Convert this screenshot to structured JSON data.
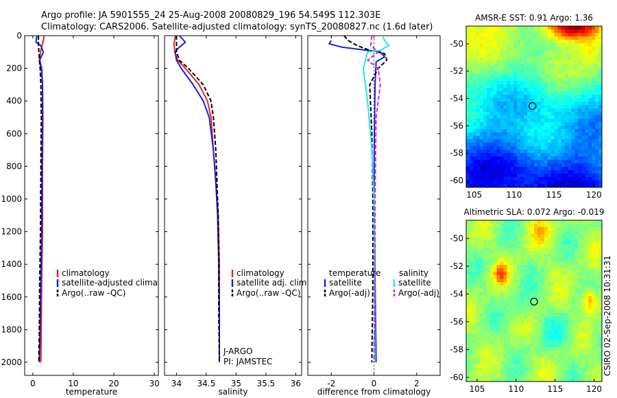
{
  "header": {
    "line1": "Argo profile: JA 5901555_24 25-Aug-2008 20080829_196 54.549S 112.303E",
    "line2": "Climatology: CARS2006. Satellite-adjusted climatology: synTS_20080827.nc (1.6d later)"
  },
  "colors": {
    "red": "#e8231c",
    "blue": "#1c1ce0",
    "black": "#000000",
    "cyan": "#20e8e8",
    "magenta": "#e020e0"
  },
  "chart_data": [
    {
      "type": "line",
      "id": "temperature",
      "xlabel": "temperature",
      "xlim": [
        -2,
        31
      ],
      "ylim": [
        0,
        2080
      ],
      "y_inverted": true,
      "xticks": [
        0,
        10,
        20,
        30
      ],
      "yticks": [
        0,
        200,
        400,
        600,
        800,
        1000,
        1200,
        1400,
        1600,
        1800,
        2000
      ],
      "legend": [
        "climatology",
        "satellite-adjusted climatology",
        "Argo(..raw -QC)"
      ],
      "series": [
        {
          "name": "climatology",
          "color": "red",
          "dash": false,
          "points": [
            [
              2.8,
              0
            ],
            [
              2.6,
              30
            ],
            [
              2.3,
              60
            ],
            [
              1.9,
              100
            ],
            [
              1.6,
              160
            ],
            [
              2.1,
              200
            ],
            [
              2.4,
              300
            ],
            [
              2.5,
              500
            ],
            [
              2.4,
              800
            ],
            [
              2.4,
              1200
            ],
            [
              2.2,
              1500
            ],
            [
              2.1,
              1800
            ],
            [
              2.0,
              2000
            ]
          ]
        },
        {
          "name": "satellite-adjusted climatology",
          "color": "blue",
          "dash": false,
          "points": [
            [
              1.0,
              0
            ],
            [
              0.8,
              40
            ],
            [
              2.0,
              60
            ],
            [
              2.6,
              100
            ],
            [
              1.7,
              150
            ],
            [
              2.2,
              200
            ],
            [
              2.4,
              300
            ],
            [
              2.4,
              500
            ],
            [
              2.3,
              800
            ],
            [
              2.2,
              1200
            ],
            [
              2.0,
              1500
            ],
            [
              1.8,
              1800
            ],
            [
              1.6,
              2000
            ]
          ]
        },
        {
          "name": "Argo(..raw -QC)",
          "color": "black",
          "dash": true,
          "points": [
            [
              1.4,
              0
            ],
            [
              1.4,
              50
            ],
            [
              1.5,
              100
            ],
            [
              1.8,
              200
            ],
            [
              2.0,
              300
            ],
            [
              2.1,
              500
            ],
            [
              2.0,
              800
            ],
            [
              1.9,
              1200
            ],
            [
              1.7,
              1500
            ],
            [
              1.6,
              1800
            ],
            [
              1.5,
              2000
            ]
          ]
        }
      ]
    },
    {
      "type": "line",
      "id": "salinity",
      "xlabel": "salinity",
      "xlim": [
        33.8,
        36.1
      ],
      "ylim": [
        0,
        2080
      ],
      "y_inverted": true,
      "xticks": [
        34,
        34.5,
        35,
        35.5,
        36
      ],
      "legend": [
        "climatology",
        "satellite adj. clim.",
        "Argo(..raw -QC)"
      ],
      "annotations": [
        "J-ARGO",
        "PI: JAMSTEC"
      ],
      "series": [
        {
          "name": "climatology",
          "color": "red",
          "dash": false,
          "points": [
            [
              33.98,
              0
            ],
            [
              33.96,
              50
            ],
            [
              33.97,
              100
            ],
            [
              34.02,
              150
            ],
            [
              34.15,
              200
            ],
            [
              34.38,
              300
            ],
            [
              34.52,
              400
            ],
            [
              34.58,
              500
            ],
            [
              34.62,
              700
            ],
            [
              34.66,
              900
            ],
            [
              34.7,
              1100
            ],
            [
              34.72,
              1400
            ],
            [
              34.72,
              1700
            ],
            [
              34.72,
              2000
            ]
          ]
        },
        {
          "name": "satellite adj. clim.",
          "color": "blue",
          "dash": false,
          "points": [
            [
              34.05,
              0
            ],
            [
              34.15,
              40
            ],
            [
              34.02,
              80
            ],
            [
              33.98,
              100
            ],
            [
              34.0,
              150
            ],
            [
              34.08,
              200
            ],
            [
              34.28,
              300
            ],
            [
              34.45,
              400
            ],
            [
              34.55,
              500
            ],
            [
              34.62,
              700
            ],
            [
              34.66,
              900
            ],
            [
              34.69,
              1100
            ],
            [
              34.71,
              1400
            ],
            [
              34.72,
              1700
            ],
            [
              34.72,
              2000
            ]
          ]
        },
        {
          "name": "Argo(..raw -QC)",
          "color": "black",
          "dash": true,
          "points": [
            [
              34.0,
              0
            ],
            [
              34.0,
              50
            ],
            [
              34.0,
              100
            ],
            [
              34.05,
              150
            ],
            [
              34.2,
              200
            ],
            [
              34.45,
              300
            ],
            [
              34.58,
              400
            ],
            [
              34.62,
              500
            ],
            [
              34.66,
              700
            ],
            [
              34.68,
              900
            ],
            [
              34.7,
              1100
            ],
            [
              34.71,
              1400
            ],
            [
              34.71,
              1700
            ],
            [
              34.72,
              2000
            ]
          ]
        }
      ]
    },
    {
      "type": "line",
      "id": "difference",
      "xlabel": "difference from climatology",
      "xlim": [
        -3.1,
        3.1
      ],
      "ylim": [
        0,
        2080
      ],
      "y_inverted": true,
      "xticks": [
        -2,
        0,
        2
      ],
      "legend_headers": [
        "temperature",
        "salinity"
      ],
      "legend": [
        "satellite",
        "Argo(-adj)",
        "satellite",
        "Argo(-adj)"
      ],
      "series": [
        {
          "name": "temperature satellite",
          "color": "blue",
          "dash": false,
          "points": [
            [
              -2.0,
              30
            ],
            [
              -2.1,
              50
            ],
            [
              -1.5,
              70
            ],
            [
              0.3,
              100
            ],
            [
              0.5,
              130
            ],
            [
              0.1,
              160
            ],
            [
              0.05,
              300
            ],
            [
              0.02,
              600
            ],
            [
              0.0,
              1000
            ],
            [
              0.05,
              1500
            ],
            [
              0.1,
              2000
            ]
          ]
        },
        {
          "name": "temperature Argo(-adj)",
          "color": "black",
          "dash": true,
          "points": [
            [
              -1.4,
              0
            ],
            [
              -1.2,
              30
            ],
            [
              -0.8,
              60
            ],
            [
              -0.2,
              90
            ],
            [
              0.5,
              110
            ],
            [
              0.6,
              150
            ],
            [
              0.2,
              200
            ],
            [
              -0.2,
              300
            ],
            [
              -0.1,
              600
            ],
            [
              -0.05,
              1000
            ],
            [
              -0.05,
              1500
            ],
            [
              -0.1,
              2000
            ]
          ]
        },
        {
          "name": "salinity satellite",
          "color": "cyan",
          "dash": false,
          "points": [
            [
              0.4,
              0
            ],
            [
              0.5,
              30
            ],
            [
              0.7,
              60
            ],
            [
              0.3,
              90
            ],
            [
              -0.3,
              100
            ],
            [
              -0.5,
              200
            ],
            [
              -0.3,
              400
            ],
            [
              -0.1,
              700
            ],
            [
              0.0,
              1000
            ],
            [
              0.02,
              1500
            ],
            [
              0.05,
              2000
            ]
          ]
        },
        {
          "name": "salinity Argo(-adj)",
          "color": "magenta",
          "dash": true,
          "points": [
            [
              -0.1,
              0
            ],
            [
              -0.15,
              60
            ],
            [
              0.2,
              100
            ],
            [
              -0.3,
              150
            ],
            [
              0.2,
              200
            ],
            [
              0.3,
              300
            ],
            [
              0.1,
              500
            ],
            [
              0.05,
              1000
            ],
            [
              0.05,
              1500
            ],
            [
              0.0,
              2000
            ]
          ]
        }
      ]
    },
    {
      "type": "heatmap",
      "id": "sst",
      "title": "AMSR-E SST: 0.91 Argo: 1.36",
      "xlim": [
        104,
        121
      ],
      "ylim": [
        -60.5,
        -48.7
      ],
      "xticks": [
        105,
        110,
        115,
        120
      ],
      "yticks": [
        -50,
        -52,
        -54,
        -56,
        -58,
        -60
      ],
      "marker": [
        112.3,
        -54.55
      ]
    },
    {
      "type": "heatmap",
      "id": "sla",
      "title": "Altimetric SLA: 0.072 Argo: -0.019",
      "xlim": [
        103.6,
        121
      ],
      "ylim": [
        -60.3,
        -48.7
      ],
      "xticks": [
        105,
        110,
        115,
        120
      ],
      "yticks": [
        -50,
        -52,
        -54,
        -56,
        -58,
        -60
      ],
      "marker": [
        112.3,
        -54.55
      ]
    }
  ],
  "side_label": "CSIRO 02-Sep-2008 10:31:31"
}
